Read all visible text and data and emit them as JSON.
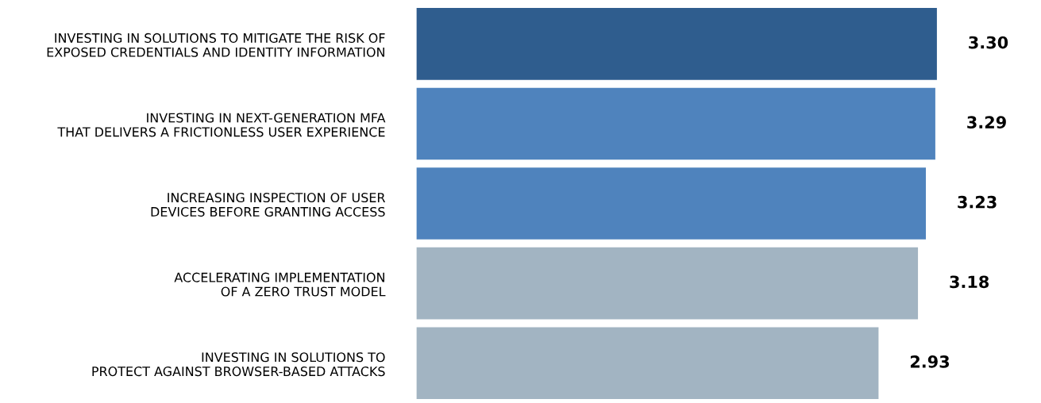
{
  "chart_data": {
    "type": "bar",
    "orientation": "horizontal",
    "categories": [
      "INVESTING IN SOLUTIONS TO MITIGATE THE RISK OF\nEXPOSED CREDENTIALS AND IDENTITY INFORMATION",
      "INVESTING IN NEXT-GENERATION MFA\nTHAT DELIVERS A FRICTIONLESS USER EXPERIENCE",
      "INCREASING INSPECTION OF USER\nDEVICES BEFORE GRANTING ACCESS",
      "ACCELERATING IMPLEMENTATION\nOF A ZERO TRUST MODEL",
      "INVESTING IN SOLUTIONS TO\nPROTECT AGAINST BROWSER-BASED ATTACKS"
    ],
    "values": [
      3.3,
      3.29,
      3.23,
      3.18,
      2.93
    ],
    "colors": [
      "#2f5d8e",
      "#4f83bd",
      "#4f83bd",
      "#a2b4c2",
      "#a2b4c2"
    ],
    "value_labels": [
      "3.30",
      "3.29",
      "3.23",
      "3.18",
      "2.93"
    ],
    "tick_labels": "y",
    "grid": false,
    "legend": false
  }
}
